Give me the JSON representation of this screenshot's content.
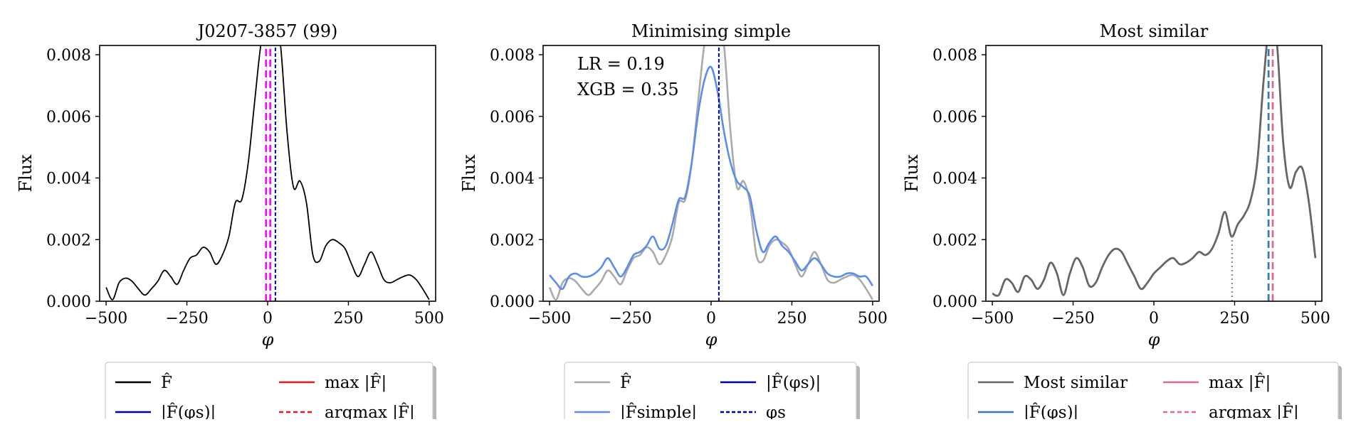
{
  "chart_data": [
    {
      "type": "line",
      "title": "J0207-3857 (99)",
      "xlabel": "φ",
      "ylabel": "Flux",
      "xlim": [
        -520,
        520
      ],
      "ylim": [
        0,
        0.0083
      ],
      "xticks": [
        {
          "v": -500,
          "label": "−500"
        },
        {
          "v": -250,
          "label": "−250"
        },
        {
          "v": 0,
          "label": "0"
        },
        {
          "v": 250,
          "label": "250"
        },
        {
          "v": 500,
          "label": "500"
        }
      ],
      "yticks": [
        {
          "v": 0,
          "label": "0.000"
        },
        {
          "v": 0.002,
          "label": "0.002"
        },
        {
          "v": 0.004,
          "label": "0.004"
        },
        {
          "v": 0.006,
          "label": "0.006"
        },
        {
          "v": 0.008,
          "label": "0.008"
        }
      ],
      "grid": false,
      "annotations": [],
      "series": [
        {
          "key": "F",
          "color": "#000000",
          "width": 1.8,
          "x": [
            -500,
            -480,
            -460,
            -440,
            -420,
            -400,
            -380,
            -360,
            -340,
            -320,
            -300,
            -280,
            -260,
            -240,
            -220,
            -200,
            -180,
            -160,
            -140,
            -120,
            -100,
            -80,
            -60,
            -40,
            -20,
            0,
            20,
            40,
            60,
            80,
            100,
            120,
            140,
            160,
            180,
            200,
            220,
            240,
            260,
            280,
            300,
            320,
            340,
            360,
            380,
            400,
            420,
            440,
            460,
            480,
            500
          ],
          "y": [
            0.00045,
            5e-05,
            0.0006,
            0.00075,
            0.00065,
            0.0004,
            0.0002,
            0.0004,
            0.00065,
            0.001,
            0.0008,
            0.00055,
            0.001,
            0.0014,
            0.0015,
            0.00175,
            0.0016,
            0.0012,
            0.0015,
            0.0021,
            0.0032,
            0.0033,
            0.0045,
            0.0065,
            0.0084,
            0.0092,
            0.0094,
            0.0083,
            0.0055,
            0.0037,
            0.0039,
            0.0032,
            0.0015,
            0.0013,
            0.0018,
            0.002,
            0.0019,
            0.0017,
            0.0012,
            0.0008,
            0.0012,
            0.0016,
            0.0012,
            0.0007,
            0.0006,
            0.0007,
            0.0008,
            0.00085,
            0.0007,
            0.0004,
            5e-05
          ]
        }
      ],
      "vlines": [
        {
          "x": -5,
          "color": "#ff00ff",
          "dash": "10,5",
          "width": 2.6,
          "ymax": 0.0083
        },
        {
          "x": 8,
          "color": "#ff00ff",
          "dash": "10,5",
          "width": 2.6,
          "ymax": 0.0083
        },
        {
          "x": 24,
          "color": "#0000b3",
          "dash": "5,3",
          "width": 2.0,
          "ymax": 0.0083
        }
      ],
      "legend": {
        "columns": 2,
        "entries": [
          {
            "label": "F̂",
            "color": "#000000",
            "dash": "none"
          },
          {
            "label": "max |F̂|",
            "color": "#e41a1c",
            "dash": "none"
          },
          {
            "label": "|F̂(φs)|",
            "color": "#0000b3",
            "dash": "none"
          },
          {
            "label": "argmax |F̂|",
            "color": "#e41a1c",
            "dash": "6,4"
          }
        ]
      }
    },
    {
      "type": "line",
      "title": "Minimising simple",
      "xlabel": "φ",
      "ylabel": "Flux",
      "xlim": [
        -520,
        520
      ],
      "ylim": [
        0,
        0.0083
      ],
      "xticks": [
        {
          "v": -500,
          "label": "−500"
        },
        {
          "v": -250,
          "label": "−250"
        },
        {
          "v": 0,
          "label": "0"
        },
        {
          "v": 250,
          "label": "250"
        },
        {
          "v": 500,
          "label": "500"
        }
      ],
      "yticks": [
        {
          "v": 0,
          "label": "0.000"
        },
        {
          "v": 0.002,
          "label": "0.002"
        },
        {
          "v": 0.004,
          "label": "0.004"
        },
        {
          "v": 0.006,
          "label": "0.006"
        },
        {
          "v": 0.008,
          "label": "0.008"
        }
      ],
      "grid": false,
      "annotations": [
        "LR = 0.19",
        "XGB = 0.35"
      ],
      "series": [
        {
          "key": "F",
          "color": "#aaaaaa",
          "width": 2.6,
          "x": [
            -500,
            -480,
            -460,
            -440,
            -420,
            -400,
            -380,
            -360,
            -340,
            -320,
            -300,
            -280,
            -260,
            -240,
            -220,
            -200,
            -180,
            -160,
            -140,
            -120,
            -100,
            -80,
            -60,
            -40,
            -20,
            0,
            20,
            40,
            60,
            80,
            100,
            120,
            140,
            160,
            180,
            200,
            220,
            240,
            260,
            280,
            300,
            320,
            340,
            360,
            380,
            400,
            420,
            440,
            460,
            480,
            500
          ],
          "y": [
            0.00045,
            5e-05,
            0.0006,
            0.00075,
            0.00065,
            0.0004,
            0.0002,
            0.0004,
            0.00065,
            0.001,
            0.0008,
            0.00055,
            0.001,
            0.0014,
            0.0015,
            0.00175,
            0.0016,
            0.0012,
            0.0015,
            0.0021,
            0.0032,
            0.0033,
            0.0045,
            0.0065,
            0.0084,
            0.0092,
            0.0094,
            0.0083,
            0.0055,
            0.0037,
            0.0039,
            0.0032,
            0.0015,
            0.0013,
            0.0018,
            0.002,
            0.0019,
            0.0017,
            0.0012,
            0.0008,
            0.0012,
            0.0016,
            0.0012,
            0.0007,
            0.0006,
            0.0007,
            0.0008,
            0.00085,
            0.0007,
            0.0004,
            5e-05
          ]
        },
        {
          "key": "F_simple",
          "color": "#5b8def",
          "width": 2.6,
          "x": [
            -500,
            -480,
            -460,
            -440,
            -420,
            -400,
            -380,
            -360,
            -340,
            -320,
            -300,
            -280,
            -260,
            -240,
            -220,
            -200,
            -180,
            -160,
            -140,
            -120,
            -100,
            -80,
            -60,
            -40,
            -20,
            0,
            20,
            40,
            60,
            80,
            100,
            120,
            140,
            160,
            180,
            200,
            220,
            240,
            260,
            280,
            300,
            320,
            340,
            360,
            380,
            400,
            420,
            440,
            460,
            480,
            500
          ],
          "y": [
            0.00085,
            0.0006,
            0.0004,
            0.0008,
            0.0009,
            0.0008,
            0.0008,
            0.0009,
            0.0011,
            0.0014,
            0.0011,
            0.0008,
            0.0011,
            0.0015,
            0.0016,
            0.0018,
            0.0021,
            0.0017,
            0.0018,
            0.0025,
            0.0033,
            0.0034,
            0.0045,
            0.0061,
            0.0072,
            0.0076,
            0.0068,
            0.0055,
            0.0045,
            0.0039,
            0.0037,
            0.0034,
            0.0023,
            0.0016,
            0.0019,
            0.0021,
            0.0018,
            0.0016,
            0.0013,
            0.001,
            0.0012,
            0.0014,
            0.0012,
            0.0009,
            0.0008,
            0.0008,
            0.0009,
            0.0009,
            0.0008,
            0.0008,
            0.0005
          ]
        }
      ],
      "vlines": [
        {
          "x": 24,
          "color": "#0000b3",
          "dash": "5,3",
          "width": 2.0,
          "ymax": 0.0083
        }
      ],
      "legend": {
        "columns": 2,
        "entries": [
          {
            "label": "F̂",
            "color": "#aaaaaa",
            "dash": "none"
          },
          {
            "label": "|F̂(φs)|",
            "color": "#0000b3",
            "dash": "none"
          },
          {
            "label": "|F̂simple|",
            "color": "#5b8def",
            "dash": "none"
          },
          {
            "label": "φs",
            "color": "#0000b3",
            "dash": "5,3"
          }
        ]
      }
    },
    {
      "type": "line",
      "title": "Most similar",
      "xlabel": "φ",
      "ylabel": "Flux",
      "xlim": [
        -520,
        520
      ],
      "ylim": [
        0,
        0.0083
      ],
      "xticks": [
        {
          "v": -500,
          "label": "−500"
        },
        {
          "v": -250,
          "label": "−250"
        },
        {
          "v": 0,
          "label": "0"
        },
        {
          "v": 250,
          "label": "250"
        },
        {
          "v": 500,
          "label": "500"
        }
      ],
      "yticks": [
        {
          "v": 0,
          "label": "0.000"
        },
        {
          "v": 0.002,
          "label": "0.002"
        },
        {
          "v": 0.004,
          "label": "0.004"
        },
        {
          "v": 0.006,
          "label": "0.006"
        },
        {
          "v": 0.008,
          "label": "0.008"
        }
      ],
      "grid": false,
      "annotations": [],
      "series": [
        {
          "key": "most_similar",
          "color": "#666666",
          "width": 2.8,
          "x": [
            -500,
            -480,
            -460,
            -440,
            -420,
            -400,
            -380,
            -360,
            -340,
            -320,
            -300,
            -280,
            -260,
            -240,
            -220,
            -200,
            -180,
            -160,
            -140,
            -120,
            -100,
            -80,
            -60,
            -40,
            -20,
            0,
            20,
            40,
            60,
            80,
            100,
            120,
            140,
            160,
            180,
            200,
            220,
            240,
            260,
            280,
            300,
            320,
            340,
            360,
            380,
            400,
            420,
            440,
            460,
            480,
            500
          ],
          "y": [
            0.00025,
            0.0002,
            0.0007,
            0.0006,
            0.0003,
            0.0008,
            0.0007,
            0.0004,
            0.0007,
            0.00125,
            0.0009,
            0.0002,
            0.0009,
            0.0014,
            0.0011,
            0.0005,
            0.0006,
            0.0011,
            0.0015,
            0.0017,
            0.0016,
            0.0012,
            0.0008,
            0.0004,
            0.0006,
            0.0009,
            0.0011,
            0.0013,
            0.0014,
            0.0012,
            0.00125,
            0.0014,
            0.0016,
            0.0015,
            0.0017,
            0.0022,
            0.0029,
            0.0021,
            0.0025,
            0.0028,
            0.0033,
            0.0045,
            0.0072,
            0.0092,
            0.0085,
            0.0052,
            0.0037,
            0.0042,
            0.0043,
            0.0032,
            0.0014
          ]
        }
      ],
      "vlines": [
        {
          "x": 242,
          "color": "#888888",
          "dash": "2,4",
          "width": 2.2,
          "ymax": 0.0021
        },
        {
          "x": 355,
          "color": "#3a7ab4",
          "dash": "10,5",
          "width": 2.8,
          "ymax": 0.0083
        },
        {
          "x": 368,
          "color": "#e0669a",
          "dash": "10,5",
          "width": 2.8,
          "ymax": 0.0083
        }
      ],
      "legend": {
        "columns": 2,
        "entries": [
          {
            "label": "Most similar",
            "color": "#666666",
            "dash": "none"
          },
          {
            "label": "max |F̂|",
            "color": "#e0669a",
            "dash": "none"
          },
          {
            "label": "|F̂(φs)|",
            "color": "#3a7ab4",
            "dash": "none"
          },
          {
            "label": "argmax |F̂|",
            "color": "#e0669a",
            "dash": "6,4"
          }
        ]
      }
    }
  ]
}
